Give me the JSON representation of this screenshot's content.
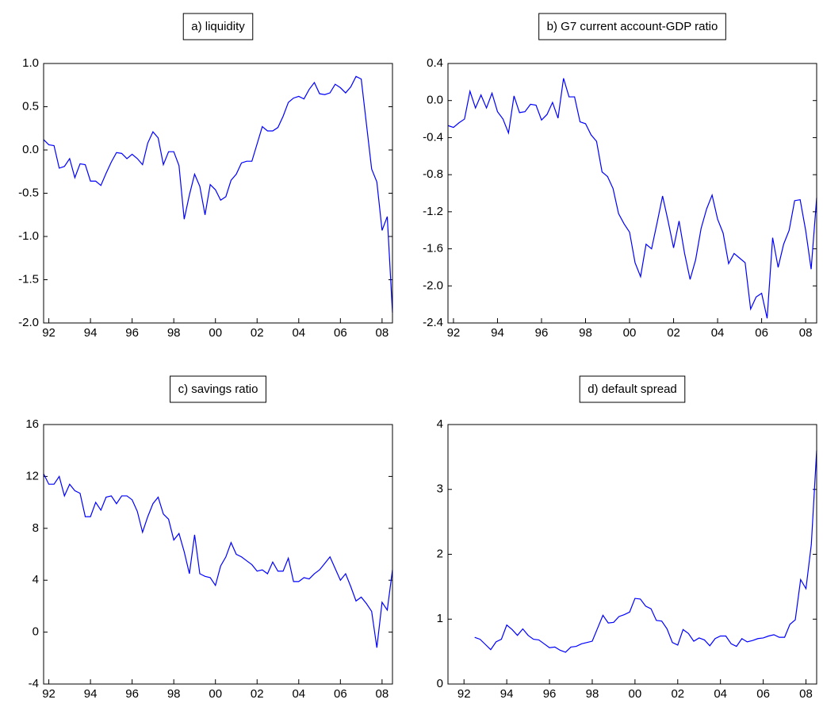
{
  "chart_data": [
    {
      "type": "line",
      "title": "a) liquidity",
      "color": "#0000ff",
      "x": [
        1991.75,
        1992,
        1992.25,
        1992.5,
        1992.75,
        1993,
        1993.25,
        1993.5,
        1993.75,
        1994,
        1994.25,
        1994.5,
        1994.75,
        1995,
        1995.25,
        1995.5,
        1995.75,
        1996,
        1996.25,
        1996.5,
        1996.75,
        1997,
        1997.25,
        1997.5,
        1997.75,
        1998,
        1998.25,
        1998.5,
        1998.75,
        1999,
        1999.25,
        1999.5,
        1999.75,
        2000,
        2000.25,
        2000.5,
        2000.75,
        2001,
        2001.25,
        2001.5,
        2001.75,
        2002,
        2002.25,
        2002.5,
        2002.75,
        2003,
        2003.25,
        2003.5,
        2003.75,
        2004,
        2004.25,
        2004.5,
        2004.75,
        2005,
        2005.25,
        2005.5,
        2005.75,
        2006,
        2006.25,
        2006.5,
        2006.75,
        2007,
        2007.25,
        2007.5,
        2007.75,
        2008,
        2008.25,
        2008.5
      ],
      "values": [
        0.12,
        0.06,
        0.05,
        -0.21,
        -0.19,
        -0.1,
        -0.32,
        -0.16,
        -0.17,
        -0.36,
        -0.36,
        -0.41,
        -0.27,
        -0.14,
        -0.03,
        -0.04,
        -0.1,
        -0.05,
        -0.1,
        -0.17,
        0.08,
        0.21,
        0.14,
        -0.17,
        -0.02,
        -0.02,
        -0.18,
        -0.8,
        -0.52,
        -0.28,
        -0.42,
        -0.75,
        -0.4,
        -0.46,
        -0.58,
        -0.54,
        -0.35,
        -0.28,
        -0.15,
        -0.13,
        -0.13,
        0.07,
        0.27,
        0.22,
        0.22,
        0.26,
        0.39,
        0.55,
        0.6,
        0.62,
        0.59,
        0.7,
        0.78,
        0.65,
        0.64,
        0.66,
        0.76,
        0.72,
        0.66,
        0.73,
        0.85,
        0.82,
        0.3,
        -0.22,
        -0.37,
        -0.93,
        -0.77,
        -1.88
      ],
      "xlim": [
        1991.75,
        2008.5
      ],
      "ylim": [
        -2,
        1
      ],
      "xticks": [
        {
          "value": 1992,
          "label": "92"
        },
        {
          "value": 1994,
          "label": "94"
        },
        {
          "value": 1996,
          "label": "96"
        },
        {
          "value": 1998,
          "label": "98"
        },
        {
          "value": 2000,
          "label": "00"
        },
        {
          "value": 2002,
          "label": "02"
        },
        {
          "value": 2004,
          "label": "04"
        },
        {
          "value": 2006,
          "label": "06"
        },
        {
          "value": 2008,
          "label": "08"
        }
      ],
      "yticks": [
        {
          "value": -2,
          "label": "-2.0"
        },
        -1.5,
        {
          "value": -1,
          "label": "-1.0"
        },
        -0.5,
        {
          "value": 0,
          "label": "0.0"
        },
        0.5,
        {
          "value": 1,
          "label": "1.0"
        }
      ]
    },
    {
      "type": "line",
      "title": "b) G7 current account-GDP ratio",
      "color": "#0000ff",
      "x": [
        1991.75,
        1992,
        1992.25,
        1992.5,
        1992.75,
        1993,
        1993.25,
        1993.5,
        1993.75,
        1994,
        1994.25,
        1994.5,
        1994.75,
        1995,
        1995.25,
        1995.5,
        1995.75,
        1996,
        1996.25,
        1996.5,
        1996.75,
        1997,
        1997.25,
        1997.5,
        1997.75,
        1998,
        1998.25,
        1998.5,
        1998.75,
        1999,
        1999.25,
        1999.5,
        1999.75,
        2000,
        2000.25,
        2000.5,
        2000.75,
        2001,
        2001.25,
        2001.5,
        2001.75,
        2002,
        2002.25,
        2002.5,
        2002.75,
        2003,
        2003.25,
        2003.5,
        2003.75,
        2004,
        2004.25,
        2004.5,
        2004.75,
        2005,
        2005.25,
        2005.5,
        2005.75,
        2006,
        2006.25,
        2006.5,
        2006.75,
        2007,
        2007.25,
        2007.5,
        2007.75,
        2008,
        2008.25,
        2008.5
      ],
      "values": [
        -0.27,
        -0.29,
        -0.24,
        -0.2,
        0.1,
        -0.08,
        0.06,
        -0.08,
        0.08,
        -0.12,
        -0.2,
        -0.35,
        0.05,
        -0.13,
        -0.12,
        -0.04,
        -0.05,
        -0.21,
        -0.15,
        -0.02,
        -0.19,
        0.24,
        0.04,
        0.04,
        -0.23,
        -0.25,
        -0.37,
        -0.44,
        -0.77,
        -0.82,
        -0.95,
        -1.22,
        -1.33,
        -1.42,
        -1.75,
        -1.9,
        -1.55,
        -1.6,
        -1.32,
        -1.03,
        -1.3,
        -1.59,
        -1.3,
        -1.65,
        -1.93,
        -1.72,
        -1.38,
        -1.17,
        -1.02,
        -1.28,
        -1.43,
        -1.76,
        -1.65,
        -1.7,
        -1.75,
        -2.25,
        -2.12,
        -2.08,
        -2.35,
        -1.48,
        -1.8,
        -1.55,
        -1.4,
        -1.08,
        -1.07,
        -1.4,
        -1.82,
        -1.05
      ],
      "xlim": [
        1991.75,
        2008.5
      ],
      "ylim": [
        -2.4,
        0.4
      ],
      "xticks": [
        {
          "value": 1992,
          "label": "92"
        },
        {
          "value": 1994,
          "label": "94"
        },
        {
          "value": 1996,
          "label": "96"
        },
        {
          "value": 1998,
          "label": "98"
        },
        {
          "value": 2000,
          "label": "00"
        },
        {
          "value": 2002,
          "label": "02"
        },
        {
          "value": 2004,
          "label": "04"
        },
        {
          "value": 2006,
          "label": "06"
        },
        {
          "value": 2008,
          "label": "08"
        }
      ],
      "yticks": [
        -2.4,
        {
          "value": -2,
          "label": "-2.0"
        },
        -1.6,
        -1.2,
        -0.8,
        -0.4,
        {
          "value": 0,
          "label": "0.0"
        },
        0.4
      ]
    },
    {
      "type": "line",
      "title": "c) savings ratio",
      "color": "#0000ff",
      "x": [
        1991.75,
        1992,
        1992.25,
        1992.5,
        1992.75,
        1993,
        1993.25,
        1993.5,
        1993.75,
        1994,
        1994.25,
        1994.5,
        1994.75,
        1995,
        1995.25,
        1995.5,
        1995.75,
        1996,
        1996.25,
        1996.5,
        1996.75,
        1997,
        1997.25,
        1997.5,
        1997.75,
        1998,
        1998.25,
        1998.5,
        1998.75,
        1999,
        1999.25,
        1999.5,
        1999.75,
        2000,
        2000.25,
        2000.5,
        2000.75,
        2001,
        2001.25,
        2001.5,
        2001.75,
        2002,
        2002.25,
        2002.5,
        2002.75,
        2003,
        2003.25,
        2003.5,
        2003.75,
        2004,
        2004.25,
        2004.5,
        2004.75,
        2005,
        2005.25,
        2005.5,
        2005.75,
        2006,
        2006.25,
        2006.5,
        2006.75,
        2007,
        2007.25,
        2007.5,
        2007.75,
        2008,
        2008.25,
        2008.5
      ],
      "values": [
        12.2,
        11.4,
        11.4,
        12.0,
        10.5,
        11.4,
        10.9,
        10.7,
        8.9,
        8.9,
        10.0,
        9.4,
        10.4,
        10.5,
        9.9,
        10.5,
        10.5,
        10.2,
        9.3,
        7.7,
        8.9,
        9.9,
        10.4,
        9.1,
        8.7,
        7.1,
        7.6,
        6.2,
        4.5,
        7.5,
        4.5,
        4.3,
        4.2,
        3.6,
        5.1,
        5.8,
        6.9,
        6.0,
        5.8,
        5.5,
        5.2,
        4.7,
        4.8,
        4.5,
        5.4,
        4.7,
        4.7,
        5.7,
        3.9,
        3.9,
        4.2,
        4.1,
        4.5,
        4.8,
        5.3,
        5.8,
        4.9,
        4.0,
        4.5,
        3.5,
        2.4,
        2.7,
        2.2,
        1.6,
        -1.2,
        2.3,
        1.7,
        4.8
      ],
      "xlim": [
        1991.75,
        2008.5
      ],
      "ylim": [
        -4,
        16
      ],
      "xticks": [
        {
          "value": 1992,
          "label": "92"
        },
        {
          "value": 1994,
          "label": "94"
        },
        {
          "value": 1996,
          "label": "96"
        },
        {
          "value": 1998,
          "label": "98"
        },
        {
          "value": 2000,
          "label": "00"
        },
        {
          "value": 2002,
          "label": "02"
        },
        {
          "value": 2004,
          "label": "04"
        },
        {
          "value": 2006,
          "label": "06"
        },
        {
          "value": 2008,
          "label": "08"
        }
      ],
      "yticks": [
        -4,
        0,
        4,
        8,
        12,
        16
      ]
    },
    {
      "type": "line",
      "title": "d) default spread",
      "color": "#0000ff",
      "x": [
        1992.5,
        1992.75,
        1993,
        1993.25,
        1993.5,
        1993.75,
        1994,
        1994.25,
        1994.5,
        1994.75,
        1995,
        1995.25,
        1995.5,
        1995.75,
        1996,
        1996.25,
        1996.5,
        1996.75,
        1997,
        1997.25,
        1997.5,
        1997.75,
        1998,
        1998.25,
        1998.5,
        1998.75,
        1999,
        1999.25,
        1999.5,
        1999.75,
        2000,
        2000.25,
        2000.5,
        2000.75,
        2001,
        2001.25,
        2001.5,
        2001.75,
        2002,
        2002.25,
        2002.5,
        2002.75,
        2003,
        2003.25,
        2003.5,
        2003.75,
        2004,
        2004.25,
        2004.5,
        2004.75,
        2005,
        2005.25,
        2005.5,
        2005.75,
        2006,
        2006.25,
        2006.5,
        2006.75,
        2007,
        2007.25,
        2007.5,
        2007.75,
        2008,
        2008.25,
        2008.5
      ],
      "values": [
        0.72,
        0.69,
        0.61,
        0.53,
        0.65,
        0.69,
        0.91,
        0.84,
        0.75,
        0.85,
        0.75,
        0.69,
        0.68,
        0.62,
        0.56,
        0.57,
        0.52,
        0.49,
        0.57,
        0.58,
        0.62,
        0.64,
        0.66,
        0.86,
        1.06,
        0.94,
        0.95,
        1.04,
        1.07,
        1.11,
        1.32,
        1.31,
        1.2,
        1.16,
        0.98,
        0.97,
        0.85,
        0.64,
        0.6,
        0.84,
        0.78,
        0.66,
        0.71,
        0.68,
        0.59,
        0.7,
        0.74,
        0.74,
        0.62,
        0.58,
        0.7,
        0.65,
        0.67,
        0.7,
        0.71,
        0.74,
        0.76,
        0.72,
        0.72,
        0.92,
        0.99,
        1.61,
        1.47,
        2.15,
        3.6
      ],
      "xlim": [
        1991.25,
        2008.5
      ],
      "ylim": [
        0,
        4
      ],
      "xticks": [
        {
          "value": 1992,
          "label": "92"
        },
        {
          "value": 1994,
          "label": "94"
        },
        {
          "value": 1996,
          "label": "96"
        },
        {
          "value": 1998,
          "label": "98"
        },
        {
          "value": 2000,
          "label": "00"
        },
        {
          "value": 2002,
          "label": "02"
        },
        {
          "value": 2004,
          "label": "04"
        },
        {
          "value": 2006,
          "label": "06"
        },
        {
          "value": 2008,
          "label": "08"
        }
      ],
      "yticks": [
        0,
        1,
        2,
        3,
        4
      ]
    }
  ]
}
